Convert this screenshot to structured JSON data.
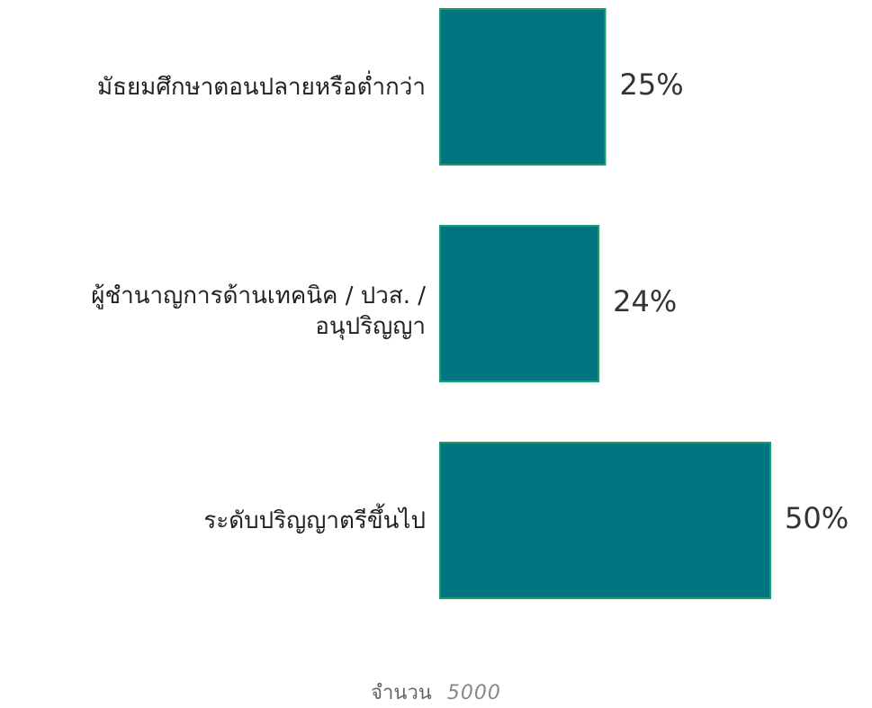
{
  "chart_data": {
    "type": "bar",
    "orientation": "horizontal",
    "categories": [
      "มัธยมศึกษาตอนปลายหรือต่ำกว่า",
      "ผู้ชำนาญการด้านเทคนิค / ปวส. / อนุปริญญา",
      "ระดับปริญญาตรีขึ้นไป"
    ],
    "category_lines": [
      [
        "มัธยมศึกษาตอนปลายหรือต่ำกว่า"
      ],
      [
        "ผู้ชำนาญการด้านเทคนิค / ปวส. /",
        "อนุปริญญา"
      ],
      [
        "ระดับปริญญาตรีขึ้นไป"
      ]
    ],
    "values": [
      25,
      24,
      50
    ],
    "value_labels": [
      "25%",
      "24%",
      "50%"
    ],
    "bar_color": "#00747f",
    "bar_edge_color": "#1a9e6e",
    "grid": false,
    "legend": "none"
  },
  "footer": {
    "label": "จำนวน",
    "count": "5000"
  }
}
